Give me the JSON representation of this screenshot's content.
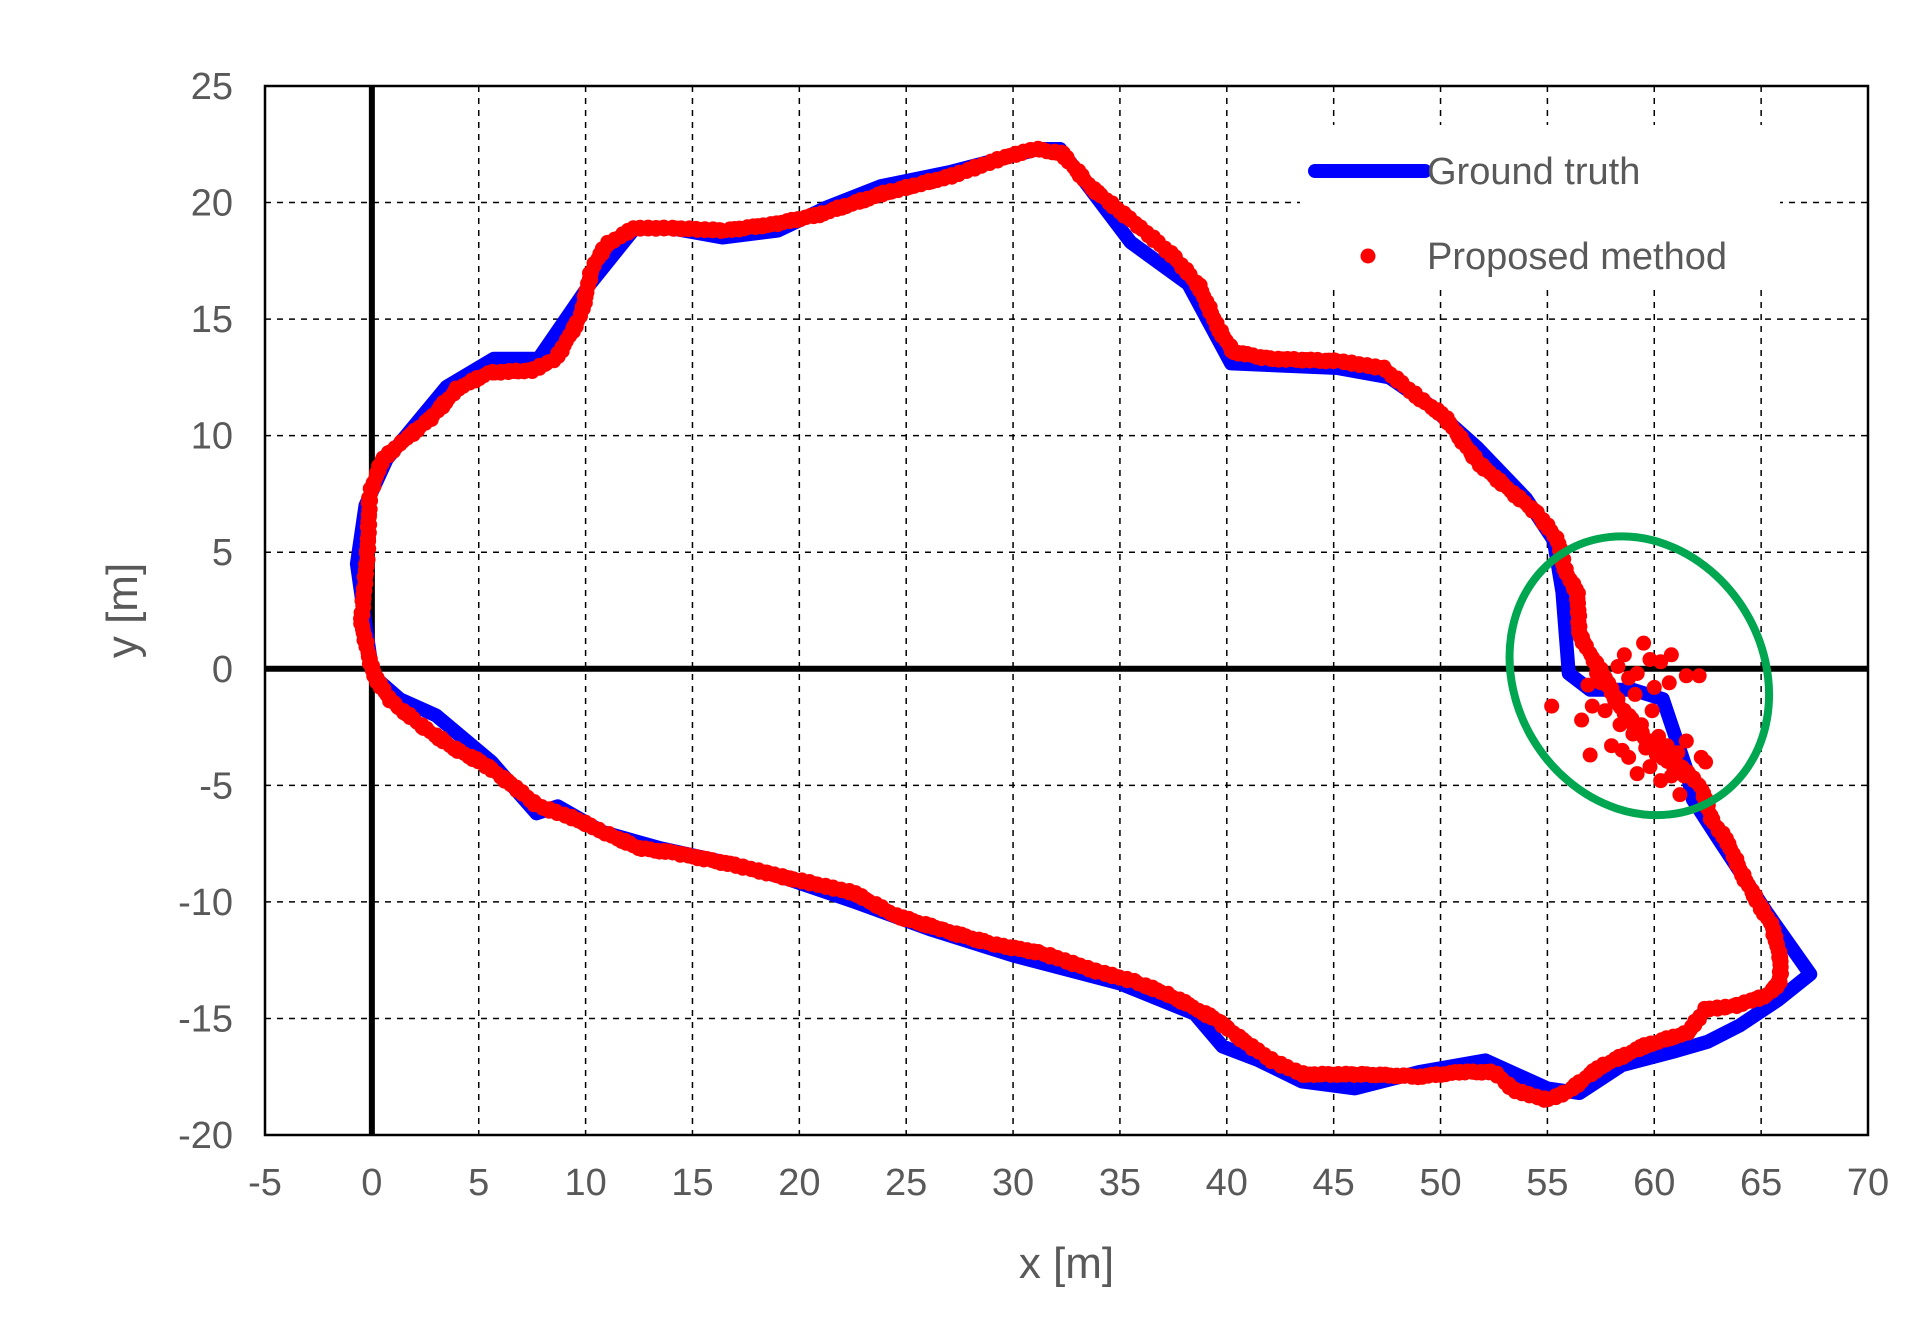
{
  "chart_data": {
    "type": "scatter",
    "xlabel": "x [m]",
    "ylabel": "y [m]",
    "xlim": [
      -5,
      70
    ],
    "ylim": [
      -20,
      25
    ],
    "xticks": [
      -5,
      0,
      5,
      10,
      15,
      20,
      25,
      30,
      35,
      40,
      45,
      50,
      55,
      60,
      65,
      70
    ],
    "yticks": [
      -20,
      -15,
      -10,
      -5,
      0,
      5,
      10,
      15,
      20,
      25
    ],
    "grid": true,
    "legend_position": "top-right",
    "series": [
      {
        "name": "Ground truth",
        "kind": "line",
        "color": "#0000ff",
        "points": [
          [
            0,
            0
          ],
          [
            -0.7,
            4.5
          ],
          [
            -0.3,
            7
          ],
          [
            0.7,
            9
          ],
          [
            3.5,
            12.1
          ],
          [
            5.7,
            13.3
          ],
          [
            7.8,
            13.3
          ],
          [
            10.2,
            16.5
          ],
          [
            12.3,
            18.9
          ],
          [
            14,
            18.9
          ],
          [
            16.4,
            18.5
          ],
          [
            19,
            18.8
          ],
          [
            21.3,
            19.8
          ],
          [
            23.8,
            20.7
          ],
          [
            27,
            21.3
          ],
          [
            31.2,
            22.3
          ],
          [
            32.2,
            22.3
          ],
          [
            35.5,
            18.3
          ],
          [
            38.2,
            16.5
          ],
          [
            40.2,
            13.1
          ],
          [
            45.2,
            12.9
          ],
          [
            47.6,
            12.5
          ],
          [
            49.5,
            11.3
          ],
          [
            51.7,
            9.5
          ],
          [
            54,
            7.3
          ],
          [
            55.3,
            5.5
          ],
          [
            55.7,
            3.3
          ],
          [
            56,
            -0.2
          ],
          [
            57,
            -0.9
          ],
          [
            59,
            -0.9
          ],
          [
            60.4,
            -1.3
          ],
          [
            61.5,
            -4.3
          ],
          [
            61.8,
            -5.6
          ],
          [
            63,
            -7.3
          ],
          [
            65.3,
            -10.5
          ],
          [
            67.3,
            -13.1
          ],
          [
            65.8,
            -14.2
          ],
          [
            64,
            -15.3
          ],
          [
            62.5,
            -16
          ],
          [
            61,
            -16.4
          ],
          [
            58.5,
            -17
          ],
          [
            56.5,
            -18.2
          ],
          [
            55,
            -18
          ],
          [
            52.1,
            -16.8
          ],
          [
            49,
            -17.3
          ],
          [
            46,
            -18
          ],
          [
            43.5,
            -17.7
          ],
          [
            41.5,
            -16.8
          ],
          [
            39.8,
            -16.2
          ],
          [
            38.5,
            -14.8
          ],
          [
            35,
            -13.5
          ],
          [
            30,
            -12.3
          ],
          [
            26.2,
            -11.2
          ],
          [
            22.6,
            -10
          ],
          [
            19.4,
            -9
          ],
          [
            17,
            -8.4
          ],
          [
            13.5,
            -7.7
          ],
          [
            10.8,
            -7
          ],
          [
            8.7,
            -5.9
          ],
          [
            7.7,
            -6.2
          ],
          [
            5.6,
            -4
          ],
          [
            3,
            -2
          ],
          [
            1.3,
            -1.3
          ],
          [
            0.3,
            -0.5
          ],
          [
            0,
            0
          ]
        ]
      },
      {
        "name": "Proposed method",
        "kind": "scatter",
        "color": "#ff0000",
        "path": [
          [
            0,
            0
          ],
          [
            -0.5,
            2
          ],
          [
            -0.2,
            5
          ],
          [
            -0.1,
            7.5
          ],
          [
            0.5,
            9
          ],
          [
            1.5,
            9.8
          ],
          [
            2.8,
            10.8
          ],
          [
            4,
            12
          ],
          [
            5.5,
            12.7
          ],
          [
            7.5,
            12.8
          ],
          [
            8.6,
            13.3
          ],
          [
            9.2,
            14.2
          ],
          [
            9.8,
            15.2
          ],
          [
            10.3,
            17.2
          ],
          [
            11,
            18.2
          ],
          [
            12.3,
            18.9
          ],
          [
            14,
            18.9
          ],
          [
            16.5,
            18.8
          ],
          [
            19,
            19.1
          ],
          [
            21,
            19.5
          ],
          [
            24,
            20.4
          ],
          [
            27,
            21.1
          ],
          [
            29.8,
            22
          ],
          [
            31,
            22.3
          ],
          [
            32.3,
            22.1
          ],
          [
            33.6,
            20.7
          ],
          [
            34.8,
            19.8
          ],
          [
            36,
            18.9
          ],
          [
            37.5,
            17.7
          ],
          [
            38.7,
            16.4
          ],
          [
            39.6,
            14.6
          ],
          [
            40.3,
            13.6
          ],
          [
            42,
            13.3
          ],
          [
            45.2,
            13.2
          ],
          [
            47.3,
            12.9
          ],
          [
            49,
            11.6
          ],
          [
            50.2,
            10.8
          ],
          [
            51.7,
            8.9
          ],
          [
            53.2,
            7.7
          ],
          [
            54.5,
            6.7
          ],
          [
            55.5,
            5.5
          ],
          [
            55.8,
            4.3
          ],
          [
            56.4,
            3.2
          ],
          [
            56.5,
            1.5
          ],
          [
            57,
            0.6
          ],
          [
            57.7,
            -0.3
          ],
          [
            58.2,
            -1.4
          ],
          [
            58.9,
            -2.2
          ],
          [
            59.6,
            -3
          ],
          [
            60.4,
            -3.8
          ],
          [
            61.3,
            -4.2
          ],
          [
            62.2,
            -5.1
          ],
          [
            62.7,
            -6.5
          ],
          [
            63.4,
            -7.4
          ],
          [
            64.1,
            -8.8
          ],
          [
            64.9,
            -10.1
          ],
          [
            65.5,
            -11
          ],
          [
            65.9,
            -12.4
          ],
          [
            65.9,
            -13.4
          ],
          [
            65.3,
            -14
          ],
          [
            63.6,
            -14.5
          ],
          [
            62.4,
            -14.6
          ],
          [
            61.6,
            -15.6
          ],
          [
            59.5,
            -16.2
          ],
          [
            57.4,
            -17.1
          ],
          [
            56,
            -18.1
          ],
          [
            55,
            -18.5
          ],
          [
            53.5,
            -18.1
          ],
          [
            52.5,
            -17.3
          ],
          [
            51,
            -17.3
          ],
          [
            49,
            -17.5
          ],
          [
            46.5,
            -17.4
          ],
          [
            43.6,
            -17.4
          ],
          [
            42.3,
            -16.9
          ],
          [
            41,
            -16.1
          ],
          [
            39.6,
            -15.1
          ],
          [
            38.6,
            -14.6
          ],
          [
            37.3,
            -14
          ],
          [
            35.6,
            -13.4
          ],
          [
            34,
            -13
          ],
          [
            31.4,
            -12.2
          ],
          [
            29,
            -11.8
          ],
          [
            26.7,
            -11.2
          ],
          [
            24.5,
            -10.6
          ],
          [
            22.5,
            -9.6
          ],
          [
            19.6,
            -9
          ],
          [
            16.9,
            -8.4
          ],
          [
            14.2,
            -7.9
          ],
          [
            12.5,
            -7.7
          ],
          [
            10.8,
            -7
          ],
          [
            9.4,
            -6.4
          ],
          [
            7.8,
            -5.9
          ],
          [
            6.6,
            -5
          ],
          [
            5.3,
            -4.1
          ],
          [
            3.8,
            -3.4
          ],
          [
            2.4,
            -2.5
          ],
          [
            1,
            -1.5
          ],
          [
            0.3,
            -0.6
          ],
          [
            0,
            0
          ]
        ],
        "scatter_points": [
          [
            55.2,
            -1.6
          ],
          [
            56.9,
            -0.7
          ],
          [
            57.3,
            -0.2
          ],
          [
            57.5,
            -0.6
          ],
          [
            58.3,
            0.1
          ],
          [
            58.8,
            -0.4
          ],
          [
            58.6,
            0.6
          ],
          [
            59.1,
            -1.1
          ],
          [
            59.5,
            1.1
          ],
          [
            59.8,
            0.4
          ],
          [
            60.3,
            0.3
          ],
          [
            60.7,
            -0.6
          ],
          [
            60,
            -0.8
          ],
          [
            59.2,
            -0.2
          ],
          [
            60.8,
            0.6
          ],
          [
            61.5,
            -0.3
          ],
          [
            62.1,
            -0.3
          ],
          [
            57.1,
            -1.6
          ],
          [
            57.7,
            -1.8
          ],
          [
            58.3,
            -1.3
          ],
          [
            58.4,
            -2.4
          ],
          [
            59,
            -2.8
          ],
          [
            59.4,
            -2.4
          ],
          [
            59.6,
            -3.4
          ],
          [
            60.2,
            -2.9
          ],
          [
            60.6,
            -3.3
          ],
          [
            60.9,
            -4.2
          ],
          [
            61.1,
            -3.6
          ],
          [
            61.4,
            -4.6
          ],
          [
            62.2,
            -3.8
          ],
          [
            57,
            -3.7
          ],
          [
            58,
            -3.3
          ],
          [
            58.5,
            -3.5
          ],
          [
            58.8,
            -3.8
          ],
          [
            59.2,
            -4.5
          ],
          [
            59.8,
            -4.2
          ],
          [
            60.3,
            -4.8
          ],
          [
            60.8,
            -4.6
          ],
          [
            61.5,
            -3.1
          ],
          [
            62.4,
            -4
          ],
          [
            56.6,
            -2.2
          ],
          [
            59.9,
            -1.8
          ],
          [
            61.2,
            -5.4
          ],
          [
            60.1,
            -3.7
          ],
          [
            58.8,
            -2.1
          ]
        ]
      }
    ],
    "annotations": [
      {
        "type": "ellipse",
        "color": "#00a650",
        "center": [
          59.3,
          -0.3
        ],
        "rx": 5.8,
        "ry": 6.2,
        "rotation": -31
      }
    ]
  }
}
